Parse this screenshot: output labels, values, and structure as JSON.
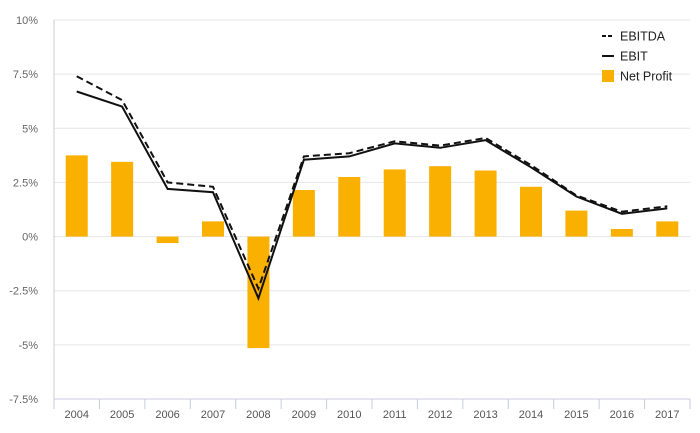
{
  "chart_data": {
    "type": "bar",
    "x": [
      "2004",
      "2005",
      "2006",
      "2007",
      "2008",
      "2009",
      "2010",
      "2011",
      "2012",
      "2013",
      "2014",
      "2015",
      "2016",
      "2017"
    ],
    "ylim": [
      -7.5,
      10
    ],
    "y_ticks": [
      10,
      7.5,
      5,
      2.5,
      0,
      -2.5,
      -5,
      -7.5
    ],
    "y_tick_labels": [
      "10%",
      "7.5%",
      "5%",
      "2.5%",
      "0%",
      "-2.5%",
      "-5%",
      "-7.5%"
    ],
    "grid": true,
    "legend_position": "top-right",
    "series": [
      {
        "name": "EBITDA",
        "kind": "line",
        "style": "dashed",
        "color": "#111111",
        "values": [
          7.4,
          6.3,
          2.5,
          2.3,
          -2.4,
          3.7,
          3.85,
          4.4,
          4.2,
          4.55,
          3.3,
          1.9,
          1.15,
          1.4
        ]
      },
      {
        "name": "EBIT",
        "kind": "line",
        "style": "solid",
        "color": "#111111",
        "values": [
          6.7,
          6.0,
          2.2,
          2.05,
          -2.85,
          3.55,
          3.7,
          4.3,
          4.1,
          4.45,
          3.2,
          1.85,
          1.05,
          1.3
        ]
      },
      {
        "name": "Net Profit",
        "kind": "bar",
        "color": "#f9b000",
        "values": [
          3.75,
          3.45,
          -0.3,
          0.7,
          -5.15,
          2.15,
          2.75,
          3.1,
          3.25,
          3.05,
          2.3,
          1.2,
          0.35,
          0.7
        ]
      }
    ]
  }
}
